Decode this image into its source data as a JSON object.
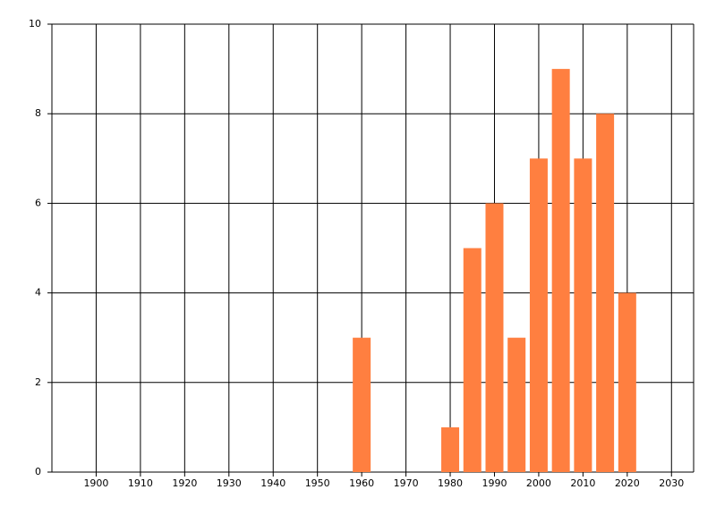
{
  "chart_data": {
    "type": "bar",
    "x": [
      1960,
      1980,
      1985,
      1990,
      1995,
      2000,
      2005,
      2010,
      2015,
      2020
    ],
    "values": [
      3,
      1,
      5,
      6,
      3,
      7,
      9,
      7,
      8,
      4
    ],
    "color": "#ff7f40",
    "xlim": [
      1890,
      2035
    ],
    "xticks": [
      1900,
      1910,
      1920,
      1930,
      1940,
      1950,
      1960,
      1970,
      1980,
      1990,
      2000,
      2010,
      2020,
      2030
    ],
    "ylim": [
      0,
      10
    ],
    "yticks": [
      0,
      2,
      4,
      6,
      8,
      10
    ],
    "grid": true
  }
}
